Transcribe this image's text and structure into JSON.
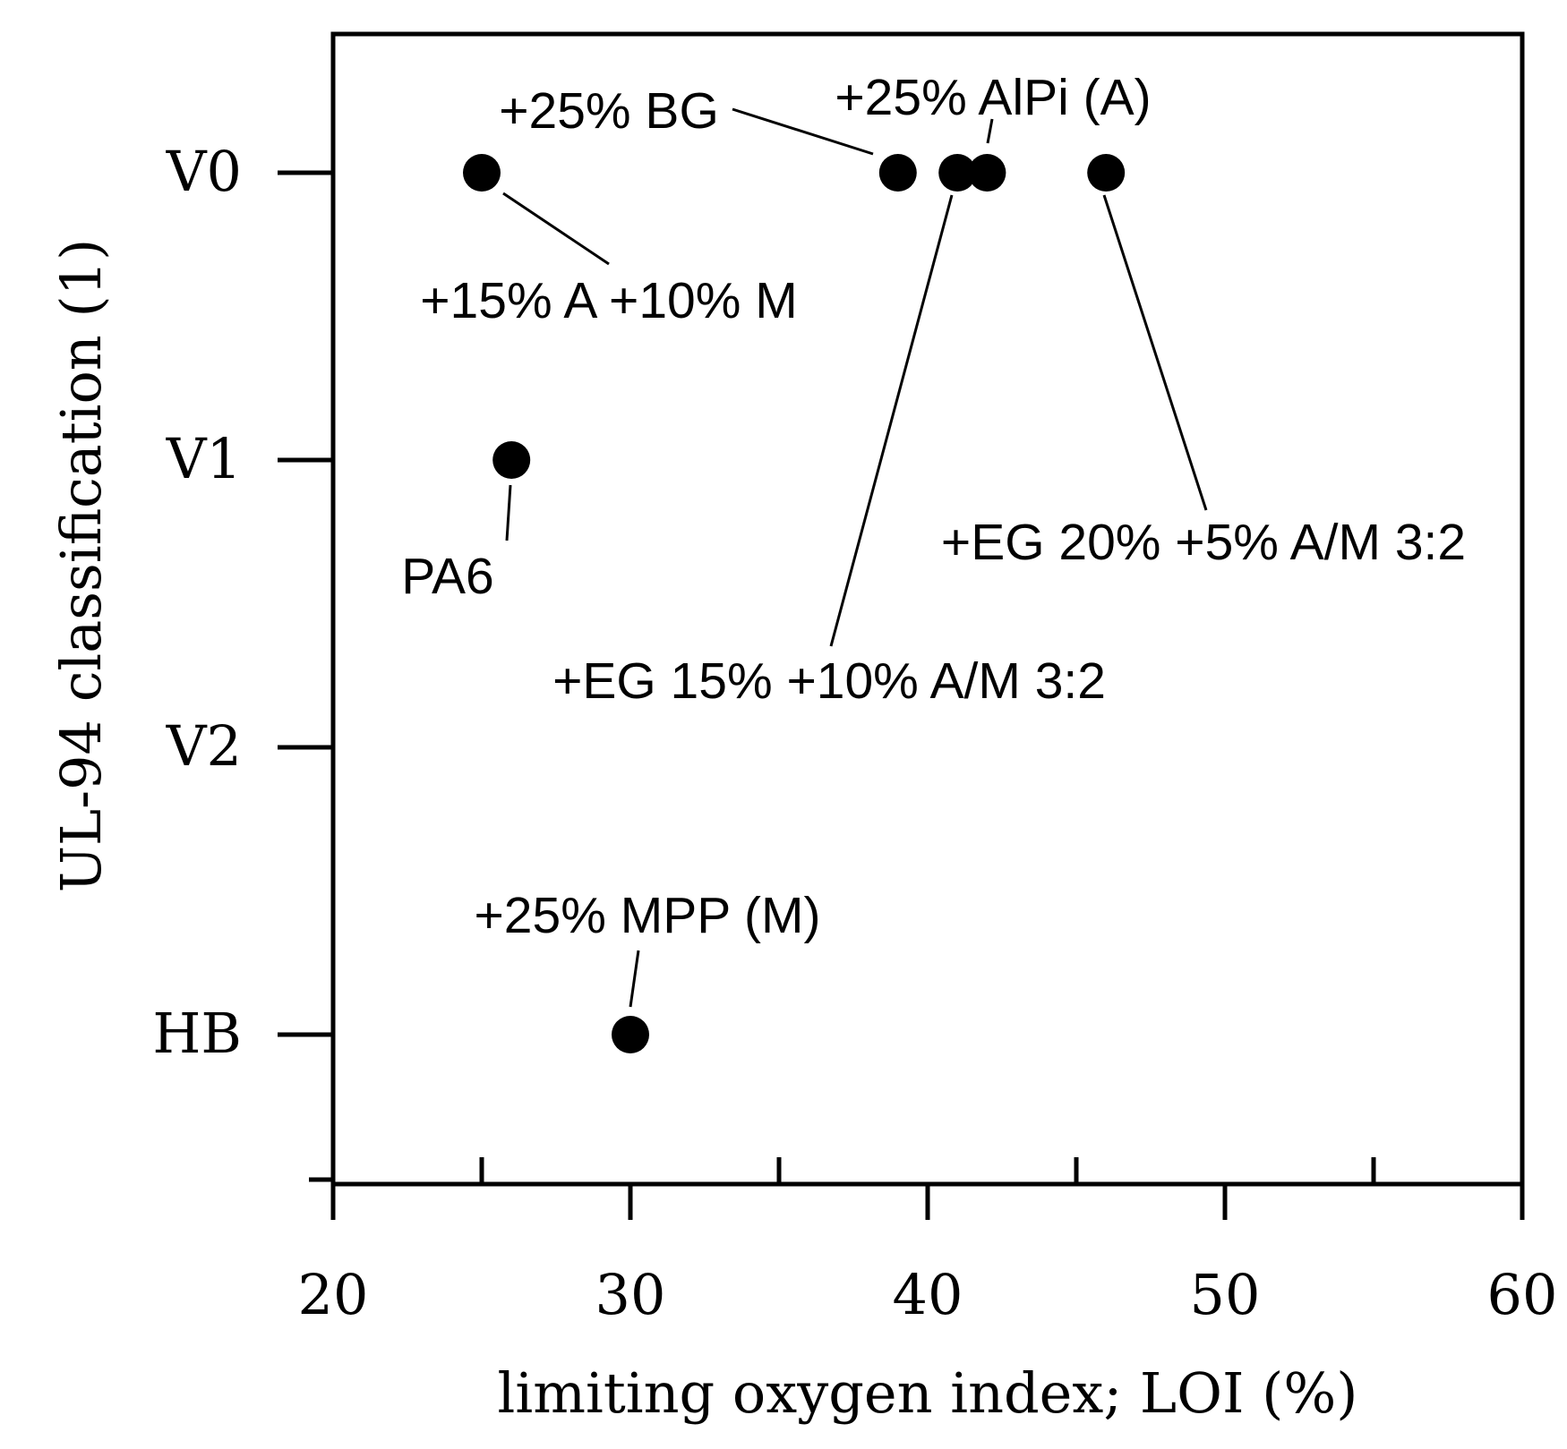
{
  "chart_data": {
    "type": "scatter",
    "xlabel": "limiting oxygen index; LOI (%)",
    "ylabel": "UL-94 classification (1)",
    "xlim": [
      20,
      60
    ],
    "x_ticks": [
      "20",
      "30",
      "40",
      "50",
      "60"
    ],
    "y_categories": [
      "HB",
      "V2",
      "V1",
      "V0"
    ],
    "points": [
      {
        "label": "PA6",
        "x": 26,
        "y": "V1"
      },
      {
        "label": "+25% MPP (M)",
        "x": 30,
        "y": "HB"
      },
      {
        "label": "+15% A +10% M",
        "x": 25,
        "y": "V0"
      },
      {
        "label": "+25% BG",
        "x": 39,
        "y": "V0"
      },
      {
        "label": "+EG 15% +10% A/M 3:2",
        "x": 41,
        "y": "V0"
      },
      {
        "label": "+25% AlPi (A)",
        "x": 42,
        "y": "V0"
      },
      {
        "label": "+EG 20% +5% A/M 3:2",
        "x": 46,
        "y": "V0"
      }
    ]
  }
}
